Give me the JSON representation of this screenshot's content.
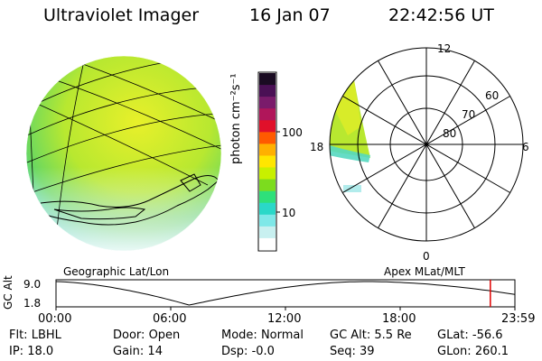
{
  "header": {
    "instrument": "Ultraviolet Imager",
    "date": "16 Jan 07",
    "time": "22:42:56 UT"
  },
  "colorbar": {
    "unit_label": "photon cm⁻²s⁻¹",
    "ticks": [
      "100",
      "10"
    ],
    "colors": [
      "#1a0b22",
      "#4a1055",
      "#7a1b6b",
      "#b0165a",
      "#e0102a",
      "#ff5a00",
      "#ffb000",
      "#ffe600",
      "#c8f000",
      "#7cdc1e",
      "#2ee07a",
      "#2ad8c8",
      "#7ee8e8",
      "#c8f0f0",
      "#ffffff"
    ]
  },
  "left_panel": {
    "label": "Geographic Lat/Lon"
  },
  "right_panel": {
    "label": "Apex MLat/MLT",
    "mlt_labels": {
      "top": "12",
      "left": "18",
      "right": "6",
      "bottom": "0"
    },
    "lat_labels": [
      "60",
      "70",
      "80"
    ]
  },
  "altitude_plot": {
    "ylabel": "GC Alt",
    "yticks": [
      "9.0",
      "1.8"
    ],
    "xticks": [
      "00:00",
      "06:00",
      "12:00",
      "18:00",
      "23:59"
    ],
    "marker_time": "22:42",
    "marker_color": "#e00000"
  },
  "status": {
    "flt_label": "Flt:",
    "flt_value": "LBHL",
    "door_label": "Door:",
    "door_value": "Open",
    "mode_label": "Mode:",
    "mode_value": "Normal",
    "gcalt_label": "GC Alt:",
    "gcalt_value": "5.5 Re",
    "glat_label": "GLat:",
    "glat_value": "-56.6",
    "ip_label": "IP:",
    "ip_value": "18.0",
    "gain_label": "Gain:",
    "gain_value": "14",
    "dsp_label": "Dsp:",
    "dsp_value": "-0.0",
    "seq_label": "Seq:",
    "seq_value": "39",
    "glon_label": "GLon:",
    "glon_value": "260.1"
  }
}
